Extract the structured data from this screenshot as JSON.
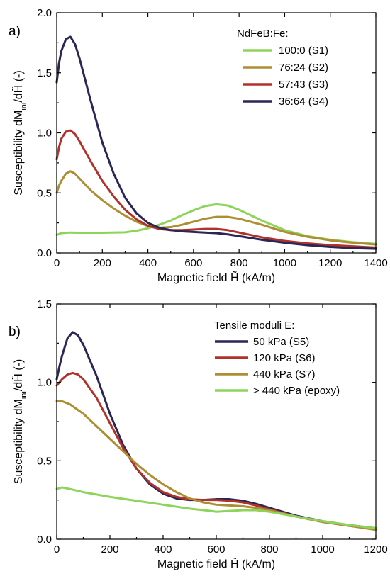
{
  "chart_data": [
    {
      "type": "line",
      "panel_label": "a)",
      "xlabel": "Magnetic field H̃ (kA/m)",
      "ylabel": "Susceptibility dM",
      "ylabel_sub": "ini",
      "ylabel_rest": "/dH̃ (-)",
      "xlim": [
        0,
        1400
      ],
      "ylim": [
        0,
        2.0
      ],
      "xticks": [
        0,
        200,
        400,
        600,
        800,
        1000,
        1200,
        1400
      ],
      "xtick_labels": [
        "0",
        "200",
        "400",
        "600",
        "800",
        "1000",
        "1200",
        "1400"
      ],
      "yticks": [
        0,
        0.5,
        1.0,
        1.5,
        2.0
      ],
      "ytick_labels": [
        "0.0",
        "0.5",
        "1.0",
        "1.5",
        "2.0"
      ],
      "legend_title": "NdFeB:Fe:",
      "legend_position": "top-right",
      "series": [
        {
          "name": "100:0 (S1)",
          "color": "#8fd45a",
          "x": [
            0,
            20,
            60,
            100,
            200,
            300,
            350,
            400,
            450,
            500,
            550,
            600,
            650,
            700,
            750,
            800,
            900,
            1000,
            1100,
            1200,
            1300,
            1400
          ],
          "y": [
            0.15,
            0.165,
            0.17,
            0.168,
            0.168,
            0.172,
            0.185,
            0.205,
            0.235,
            0.27,
            0.315,
            0.355,
            0.39,
            0.405,
            0.395,
            0.36,
            0.27,
            0.19,
            0.14,
            0.11,
            0.09,
            0.075
          ]
        },
        {
          "name": "76:24 (S2)",
          "color": "#ad8e32",
          "x": [
            0,
            10,
            20,
            40,
            60,
            80,
            100,
            150,
            200,
            250,
            300,
            350,
            400,
            450,
            500,
            550,
            600,
            650,
            700,
            750,
            800,
            900,
            1000,
            1100,
            1200,
            1300,
            1400
          ],
          "y": [
            0.5,
            0.56,
            0.6,
            0.66,
            0.68,
            0.66,
            0.62,
            0.52,
            0.44,
            0.37,
            0.31,
            0.26,
            0.225,
            0.21,
            0.215,
            0.235,
            0.26,
            0.285,
            0.3,
            0.3,
            0.285,
            0.235,
            0.175,
            0.135,
            0.105,
            0.085,
            0.07
          ]
        },
        {
          "name": "57:43 (S3)",
          "color": "#b0322a",
          "x": [
            0,
            10,
            20,
            40,
            60,
            80,
            100,
            150,
            200,
            250,
            300,
            350,
            400,
            450,
            500,
            550,
            600,
            650,
            700,
            750,
            800,
            900,
            1000,
            1100,
            1200,
            1300,
            1400
          ],
          "y": [
            0.78,
            0.88,
            0.95,
            1.01,
            1.02,
            0.99,
            0.93,
            0.76,
            0.6,
            0.47,
            0.36,
            0.28,
            0.225,
            0.2,
            0.19,
            0.19,
            0.195,
            0.2,
            0.2,
            0.19,
            0.17,
            0.13,
            0.1,
            0.08,
            0.065,
            0.055,
            0.045
          ]
        },
        {
          "name": "36:64 (S4)",
          "color": "#2a2756",
          "x": [
            0,
            10,
            20,
            40,
            60,
            80,
            100,
            150,
            200,
            250,
            300,
            350,
            400,
            450,
            500,
            550,
            600,
            650,
            700,
            750,
            800,
            900,
            1000,
            1100,
            1200,
            1300,
            1400
          ],
          "y": [
            1.42,
            1.58,
            1.68,
            1.78,
            1.8,
            1.74,
            1.62,
            1.26,
            0.92,
            0.66,
            0.46,
            0.33,
            0.25,
            0.21,
            0.19,
            0.18,
            0.175,
            0.17,
            0.165,
            0.155,
            0.14,
            0.11,
            0.085,
            0.065,
            0.05,
            0.04,
            0.035
          ]
        }
      ]
    },
    {
      "type": "line",
      "panel_label": "b)",
      "xlabel": "Magnetic field H̃ (kA/m)",
      "ylabel": "Susceptibility dM",
      "ylabel_sub": "ini",
      "ylabel_rest": "/dH̃ (-)",
      "xlim": [
        0,
        1200
      ],
      "ylim": [
        0,
        1.5
      ],
      "xticks": [
        0,
        200,
        400,
        600,
        800,
        1000,
        1200
      ],
      "xtick_labels": [
        "0",
        "200",
        "400",
        "600",
        "800",
        "1000",
        "1200"
      ],
      "yticks": [
        0,
        0.5,
        1.0,
        1.5
      ],
      "ytick_labels": [
        "0.0",
        "0.5",
        "1.0",
        "1.5"
      ],
      "legend_title": "Tensile moduli E:",
      "legend_position": "top-right",
      "series": [
        {
          "name": "50 kPa (S5)",
          "color": "#2a2756",
          "x": [
            0,
            10,
            20,
            40,
            60,
            80,
            100,
            150,
            200,
            250,
            300,
            350,
            400,
            450,
            500,
            550,
            600,
            650,
            700,
            750,
            800,
            900,
            1000,
            1100,
            1200
          ],
          "y": [
            1.02,
            1.1,
            1.17,
            1.28,
            1.32,
            1.3,
            1.24,
            1.04,
            0.8,
            0.6,
            0.45,
            0.35,
            0.29,
            0.26,
            0.25,
            0.25,
            0.255,
            0.255,
            0.245,
            0.225,
            0.2,
            0.15,
            0.115,
            0.09,
            0.07
          ]
        },
        {
          "name": "120 kPa (S6)",
          "color": "#b0322a",
          "x": [
            0,
            10,
            20,
            40,
            60,
            80,
            100,
            150,
            200,
            250,
            300,
            350,
            400,
            450,
            500,
            550,
            600,
            650,
            700,
            750,
            800,
            900,
            1000,
            1100,
            1200
          ],
          "y": [
            0.98,
            1.0,
            1.02,
            1.05,
            1.06,
            1.05,
            1.02,
            0.9,
            0.74,
            0.58,
            0.45,
            0.36,
            0.3,
            0.27,
            0.255,
            0.25,
            0.25,
            0.245,
            0.235,
            0.215,
            0.19,
            0.145,
            0.11,
            0.085,
            0.065
          ]
        },
        {
          "name": "440 kPa (S7)",
          "color": "#ad8e32",
          "x": [
            0,
            20,
            50,
            100,
            150,
            200,
            250,
            300,
            350,
            400,
            450,
            500,
            550,
            600,
            650,
            700,
            750,
            800,
            900,
            1000,
            1100,
            1200
          ],
          "y": [
            0.88,
            0.88,
            0.86,
            0.8,
            0.72,
            0.64,
            0.56,
            0.48,
            0.41,
            0.35,
            0.3,
            0.26,
            0.235,
            0.22,
            0.215,
            0.21,
            0.2,
            0.185,
            0.145,
            0.11,
            0.085,
            0.06
          ]
        },
        {
          "name": "> 440 kPa (epoxy)",
          "color": "#8fd45a",
          "x": [
            0,
            20,
            50,
            100,
            200,
            300,
            400,
            500,
            580,
            600,
            650,
            700,
            750,
            800,
            900,
            1000,
            1100,
            1200
          ],
          "y": [
            0.32,
            0.33,
            0.32,
            0.3,
            0.27,
            0.245,
            0.22,
            0.195,
            0.18,
            0.175,
            0.18,
            0.185,
            0.185,
            0.175,
            0.145,
            0.115,
            0.09,
            0.07
          ]
        }
      ]
    }
  ]
}
